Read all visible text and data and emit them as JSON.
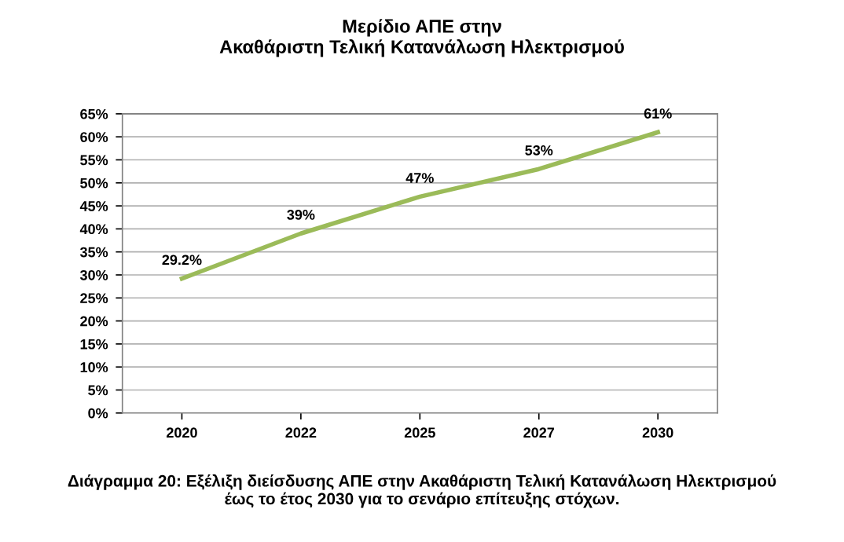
{
  "chart_data": {
    "type": "line",
    "title": "Μερίδιο ΑΠΕ στην\nΑκαθάριστη Τελική Κατανάλωση Ηλεκτρισμού",
    "categories": [
      "2020",
      "2022",
      "2025",
      "2027",
      "2030"
    ],
    "series": [
      {
        "color": "#9bbb59",
        "values": [
          29.2,
          39,
          47,
          53,
          61
        ],
        "value_labels": [
          "29.2%",
          "39%",
          "47%",
          "53%",
          "61%"
        ]
      }
    ],
    "ylim": [
      0,
      65
    ],
    "yticks": [
      {
        "value": 0,
        "label": "0%"
      },
      {
        "value": 5,
        "label": "5%"
      },
      {
        "value": 10,
        "label": "10%"
      },
      {
        "value": 15,
        "label": "15%"
      },
      {
        "value": 20,
        "label": "20%"
      },
      {
        "value": 25,
        "label": "25%"
      },
      {
        "value": 30,
        "label": "30%"
      },
      {
        "value": 35,
        "label": "35%"
      },
      {
        "value": 40,
        "label": "40%"
      },
      {
        "value": 45,
        "label": "45%"
      },
      {
        "value": 50,
        "label": "50%"
      },
      {
        "value": 55,
        "label": "55%"
      },
      {
        "value": 60,
        "label": "60%"
      },
      {
        "value": 65,
        "label": "65%"
      }
    ],
    "grid": "y",
    "legend": false,
    "marker": "none",
    "line_style": "solid",
    "annotations": [
      "Διάγραμμα 20: Εξέλιξη διείσδυσης ΑΠΕ στην Ακαθάριστη Τελική Κατανάλωση Ηλεκτρισμού έως το έτος 2030 για το σενάριο επίτευξης στόχων."
    ]
  }
}
